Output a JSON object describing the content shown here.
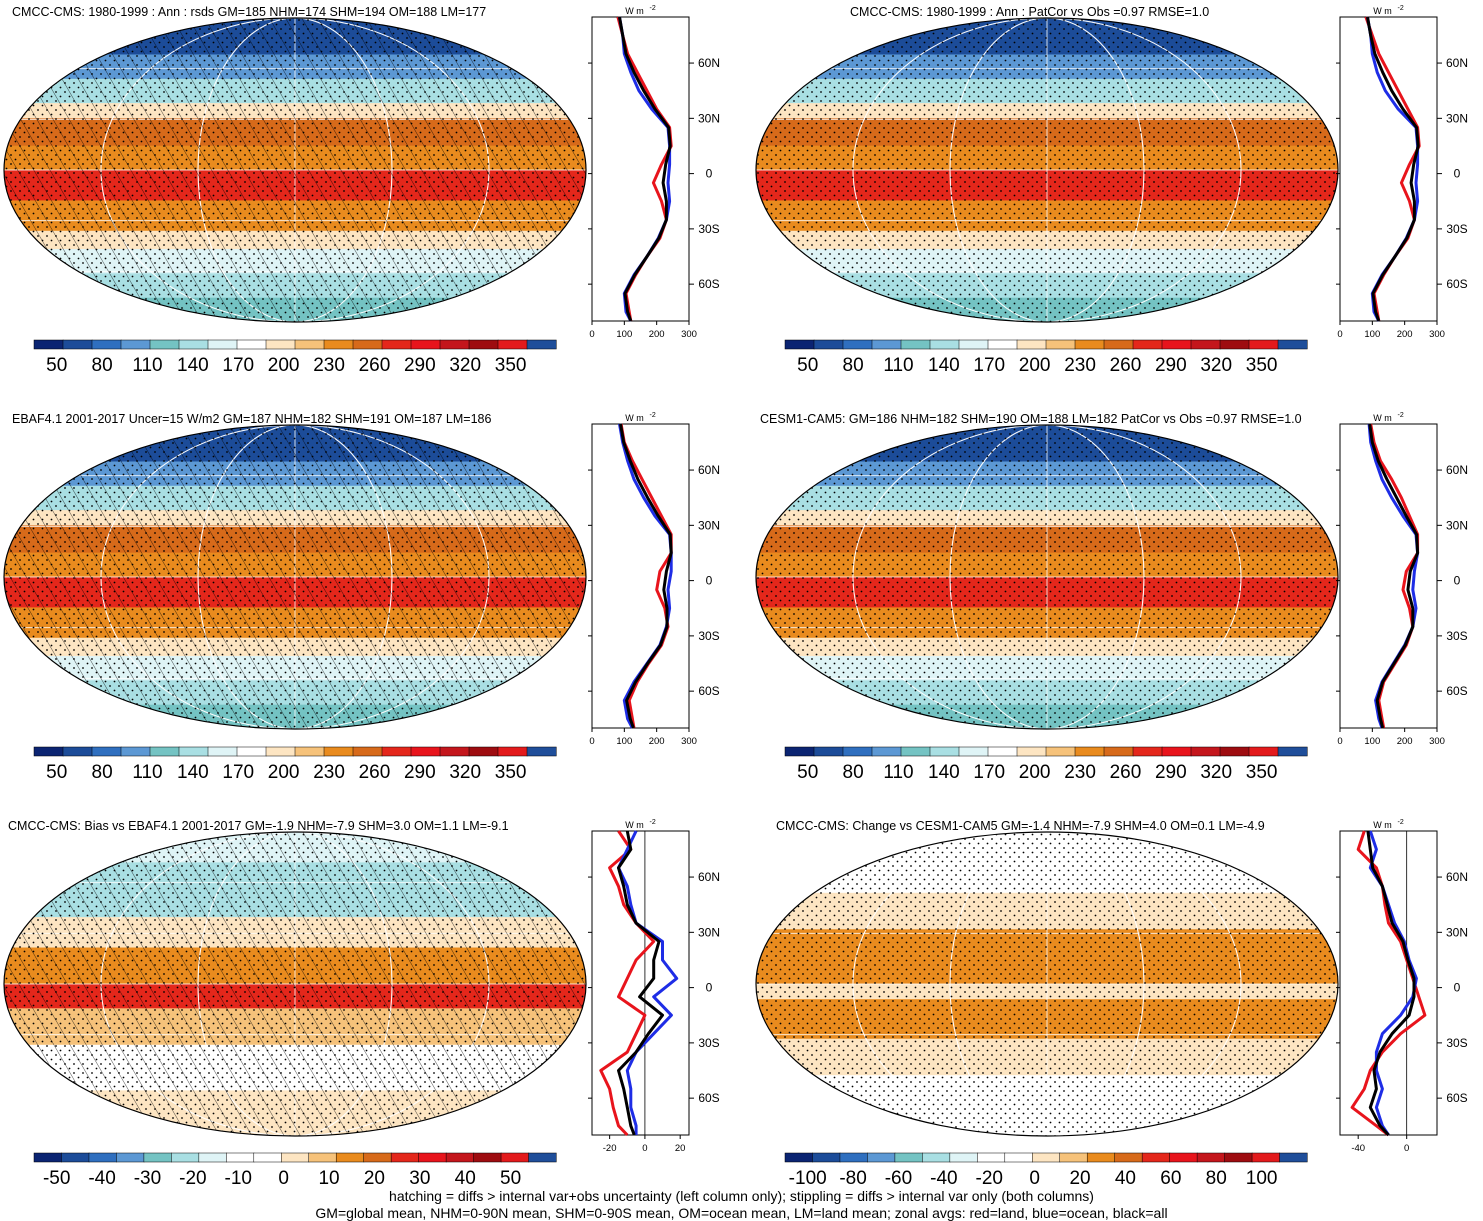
{
  "colors": {
    "red": "#e8141c",
    "blue": "#1e2de6",
    "black": "#000000",
    "scale_abs": [
      "#0b2472",
      "#1c4c99",
      "#2f6fbf",
      "#5c98d4",
      "#74c3c3",
      "#a9dfe3",
      "#dff4f6",
      "#ffffff",
      "#fde5c2",
      "#f6c27a",
      "#e98b1e",
      "#d76a1a",
      "#e4271b",
      "#e8141c",
      "#c4161c",
      "#9e0c10",
      "#e31a1c",
      "#1f4e9a"
    ],
    "scale_diff": [
      "#0b2472",
      "#1c4c99",
      "#2f6fbf",
      "#5c98d4",
      "#74c3c3",
      "#a9dfe3",
      "#dff4f6",
      "#ffffff",
      "#ffffff",
      "#fde5c2",
      "#f6c27a",
      "#e98b1e",
      "#d76a1a",
      "#e4271b",
      "#e8141c",
      "#c4161c",
      "#9e0c10",
      "#e31a1c",
      "#1f4e9a"
    ]
  },
  "panels": [
    {
      "title": "CMCC-CMS: 1980-1999 : Ann : rsds GM=185 NHM=174 SHM=194 OM=188 LM=177",
      "kind": "abs",
      "hatch": true
    },
    {
      "title": "CMCC-CMS: 1980-1999 : Ann : PatCor vs Obs =0.97 RMSE=1.0",
      "kind": "abs",
      "hatch": false
    },
    {
      "title": "EBAF4.1 2001-2017 Uncer=15 W/m2 GM=187 NHM=182 SHM=191 OM=187 LM=186",
      "kind": "abs",
      "hatch": true
    },
    {
      "title": "CESM1-CAM5: GM=186 NHM=182 SHM=190 OM=188 LM=182 PatCor vs Obs =0.97 RMSE=1.0",
      "kind": "abs",
      "hatch": false
    },
    {
      "title": "CMCC-CMS: Bias vs EBAF4.1 2001-2017 GM=-1.9 NHM=-7.9 SHM=3.0 OM=1.1 LM=-9.1",
      "kind": "diff",
      "hatch": true
    },
    {
      "title": "CMCC-CMS: Change vs CESM1-CAM5 GM=-1.4 NHM=-7.9 SHM=4.0 OM=0.1 LM=-4.9",
      "kind": "diff",
      "hatch": false
    }
  ],
  "colorbar_labels": {
    "abs": [
      "50",
      "80",
      "110",
      "140",
      "170",
      "200",
      "230",
      "260",
      "290",
      "320",
      "350"
    ],
    "bias": [
      "-50",
      "-40",
      "-30",
      "-20",
      "-10",
      "0",
      "10",
      "20",
      "30",
      "40",
      "50"
    ],
    "change": [
      "-100",
      "-80",
      "-60",
      "-40",
      "-20",
      "0",
      "20",
      "40",
      "60",
      "80",
      "100"
    ]
  },
  "chart_data": [
    {
      "type": "line",
      "role": "zonal-average",
      "panel": 0,
      "units_label": "W m",
      "units_exp": "-2",
      "lat_ticks": [
        "60N",
        "30N",
        "0",
        "30S",
        "60S"
      ],
      "x_ticks": [
        "0",
        "100",
        "200",
        "300"
      ],
      "xlim": [
        0,
        300
      ],
      "ylim": [
        -80,
        85
      ],
      "lat": [
        85,
        75,
        65,
        55,
        45,
        35,
        25,
        15,
        5,
        -5,
        -15,
        -25,
        -35,
        -45,
        -55,
        -65,
        -75,
        -80
      ],
      "series": [
        {
          "color": "red",
          "values": [
            80,
            95,
            110,
            140,
            170,
            200,
            240,
            245,
            215,
            190,
            215,
            230,
            210,
            170,
            135,
            105,
            115,
            120
          ]
        },
        {
          "color": "blue",
          "values": [
            85,
            95,
            100,
            120,
            145,
            185,
            235,
            240,
            240,
            235,
            240,
            230,
            205,
            170,
            130,
            100,
            105,
            120
          ]
        },
        {
          "color": "black",
          "values": [
            85,
            95,
            105,
            130,
            160,
            195,
            237,
            242,
            228,
            220,
            230,
            230,
            207,
            170,
            132,
            102,
            110,
            120
          ]
        }
      ]
    },
    {
      "type": "line",
      "role": "zonal-average",
      "panel": 1,
      "units_label": "W m",
      "units_exp": "-2",
      "lat_ticks": [
        "60N",
        "30N",
        "0",
        "30S",
        "60S"
      ],
      "x_ticks": [
        "0",
        "100",
        "200",
        "300"
      ],
      "xlim": [
        0,
        300
      ],
      "ylim": [
        -80,
        85
      ],
      "lat": [
        85,
        75,
        65,
        55,
        45,
        35,
        25,
        15,
        5,
        -5,
        -15,
        -25,
        -35,
        -45,
        -55,
        -65,
        -75,
        -80
      ],
      "series": [
        {
          "color": "red",
          "values": [
            80,
            100,
            120,
            150,
            180,
            210,
            240,
            245,
            215,
            190,
            215,
            230,
            210,
            170,
            135,
            105,
            115,
            120
          ]
        },
        {
          "color": "blue",
          "values": [
            85,
            95,
            100,
            115,
            140,
            180,
            235,
            240,
            240,
            235,
            240,
            230,
            205,
            170,
            130,
            100,
            105,
            120
          ]
        },
        {
          "color": "black",
          "values": [
            85,
            95,
            108,
            132,
            160,
            195,
            237,
            242,
            228,
            220,
            230,
            230,
            207,
            170,
            132,
            102,
            110,
            120
          ]
        }
      ]
    },
    {
      "type": "line",
      "role": "zonal-average",
      "panel": 2,
      "units_label": "W m",
      "units_exp": "-2",
      "lat_ticks": [
        "60N",
        "30N",
        "0",
        "30S",
        "60S"
      ],
      "x_ticks": [
        "0",
        "100",
        "200",
        "300"
      ],
      "xlim": [
        0,
        300
      ],
      "ylim": [
        -80,
        85
      ],
      "lat": [
        85,
        75,
        65,
        55,
        45,
        35,
        25,
        15,
        5,
        -5,
        -15,
        -25,
        -35,
        -45,
        -55,
        -65,
        -75,
        -80
      ],
      "series": [
        {
          "color": "red",
          "values": [
            90,
            100,
            125,
            155,
            185,
            215,
            245,
            245,
            210,
            200,
            225,
            235,
            215,
            175,
            140,
            115,
            125,
            130
          ]
        },
        {
          "color": "blue",
          "values": [
            85,
            95,
            110,
            130,
            160,
            195,
            240,
            245,
            245,
            235,
            240,
            230,
            210,
            170,
            130,
            100,
            110,
            125
          ]
        },
        {
          "color": "black",
          "values": [
            88,
            98,
            118,
            142,
            172,
            205,
            242,
            245,
            230,
            222,
            232,
            232,
            212,
            172,
            135,
            107,
            118,
            128
          ]
        }
      ]
    },
    {
      "type": "line",
      "role": "zonal-average",
      "panel": 3,
      "units_label": "W m",
      "units_exp": "-2",
      "lat_ticks": [
        "60N",
        "30N",
        "0",
        "30S",
        "60S"
      ],
      "x_ticks": [
        "0",
        "100",
        "200",
        "300"
      ],
      "xlim": [
        0,
        300
      ],
      "ylim": [
        -80,
        85
      ],
      "lat": [
        85,
        75,
        65,
        55,
        45,
        35,
        25,
        15,
        5,
        -5,
        -15,
        -25,
        -35,
        -45,
        -55,
        -65,
        -75,
        -80
      ],
      "series": [
        {
          "color": "red",
          "values": [
            95,
            105,
            125,
            160,
            190,
            215,
            240,
            240,
            205,
            195,
            215,
            225,
            205,
            170,
            135,
            120,
            130,
            135
          ]
        },
        {
          "color": "blue",
          "values": [
            90,
            95,
            110,
            130,
            160,
            195,
            235,
            240,
            230,
            225,
            235,
            225,
            200,
            165,
            130,
            110,
            120,
            130
          ]
        },
        {
          "color": "black",
          "values": [
            92,
            100,
            118,
            145,
            175,
            205,
            237,
            240,
            217,
            210,
            225,
            225,
            202,
            167,
            132,
            115,
            125,
            132
          ]
        }
      ]
    },
    {
      "type": "line",
      "role": "zonal-bias",
      "panel": 4,
      "units_label": "W m",
      "units_exp": "-2",
      "lat_ticks": [
        "60N",
        "30N",
        "0",
        "30S",
        "60S"
      ],
      "x_ticks": [
        "-20",
        "0",
        "20"
      ],
      "xlim": [
        -30,
        25
      ],
      "ylim": [
        -80,
        85
      ],
      "lat": [
        85,
        75,
        65,
        55,
        45,
        35,
        25,
        15,
        5,
        -5,
        -15,
        -25,
        -35,
        -45,
        -55,
        -65,
        -75,
        -80
      ],
      "series": [
        {
          "color": "red",
          "values": [
            -15,
            -8,
            -20,
            -15,
            -12,
            -5,
            5,
            -5,
            -10,
            -15,
            0,
            -5,
            -10,
            -25,
            -20,
            -18,
            -15,
            -10
          ]
        },
        {
          "color": "blue",
          "values": [
            -5,
            -10,
            -15,
            -10,
            -8,
            -5,
            10,
            10,
            18,
            5,
            15,
            5,
            -5,
            -10,
            -8,
            -8,
            -5,
            -5
          ]
        },
        {
          "color": "black",
          "values": [
            -10,
            -8,
            -15,
            -12,
            -10,
            -5,
            8,
            5,
            5,
            -3,
            10,
            2,
            -5,
            -15,
            -12,
            -10,
            -8,
            -6
          ]
        }
      ]
    },
    {
      "type": "line",
      "role": "zonal-change",
      "panel": 5,
      "units_label": "W m",
      "units_exp": "-2",
      "lat_ticks": [
        "60N",
        "30N",
        "0",
        "30S",
        "60S"
      ],
      "x_ticks": [
        "-40",
        "0"
      ],
      "xlim": [
        -55,
        25
      ],
      "ylim": [
        -80,
        85
      ],
      "lat": [
        85,
        75,
        65,
        55,
        45,
        35,
        25,
        15,
        5,
        -5,
        -15,
        -25,
        -35,
        -45,
        -55,
        -65,
        -75,
        -80
      ],
      "series": [
        {
          "color": "red",
          "values": [
            -35,
            -40,
            -25,
            -20,
            -18,
            -15,
            -5,
            0,
            5,
            10,
            15,
            -5,
            -20,
            -30,
            -35,
            -45,
            -25,
            -15
          ]
        },
        {
          "color": "blue",
          "values": [
            -30,
            -25,
            -30,
            -20,
            -15,
            -10,
            -2,
            2,
            8,
            5,
            -5,
            -20,
            -25,
            -25,
            -20,
            -25,
            -20,
            -15
          ]
        },
        {
          "color": "black",
          "values": [
            -32,
            -30,
            -28,
            -20,
            -16,
            -12,
            -3,
            1,
            6,
            6,
            2,
            -12,
            -22,
            -27,
            -25,
            -30,
            -22,
            -15
          ]
        }
      ]
    }
  ],
  "footer": {
    "line1": "hatching = diffs > internal var+obs uncertainty (left column only); stippling = diffs > internal var only (both columns)",
    "line2": "GM=global mean, NHM=0-90N mean, SHM=0-90S mean, OM=ocean mean, LM=land mean; zonal avgs: red=land, blue=ocean, black=all"
  }
}
